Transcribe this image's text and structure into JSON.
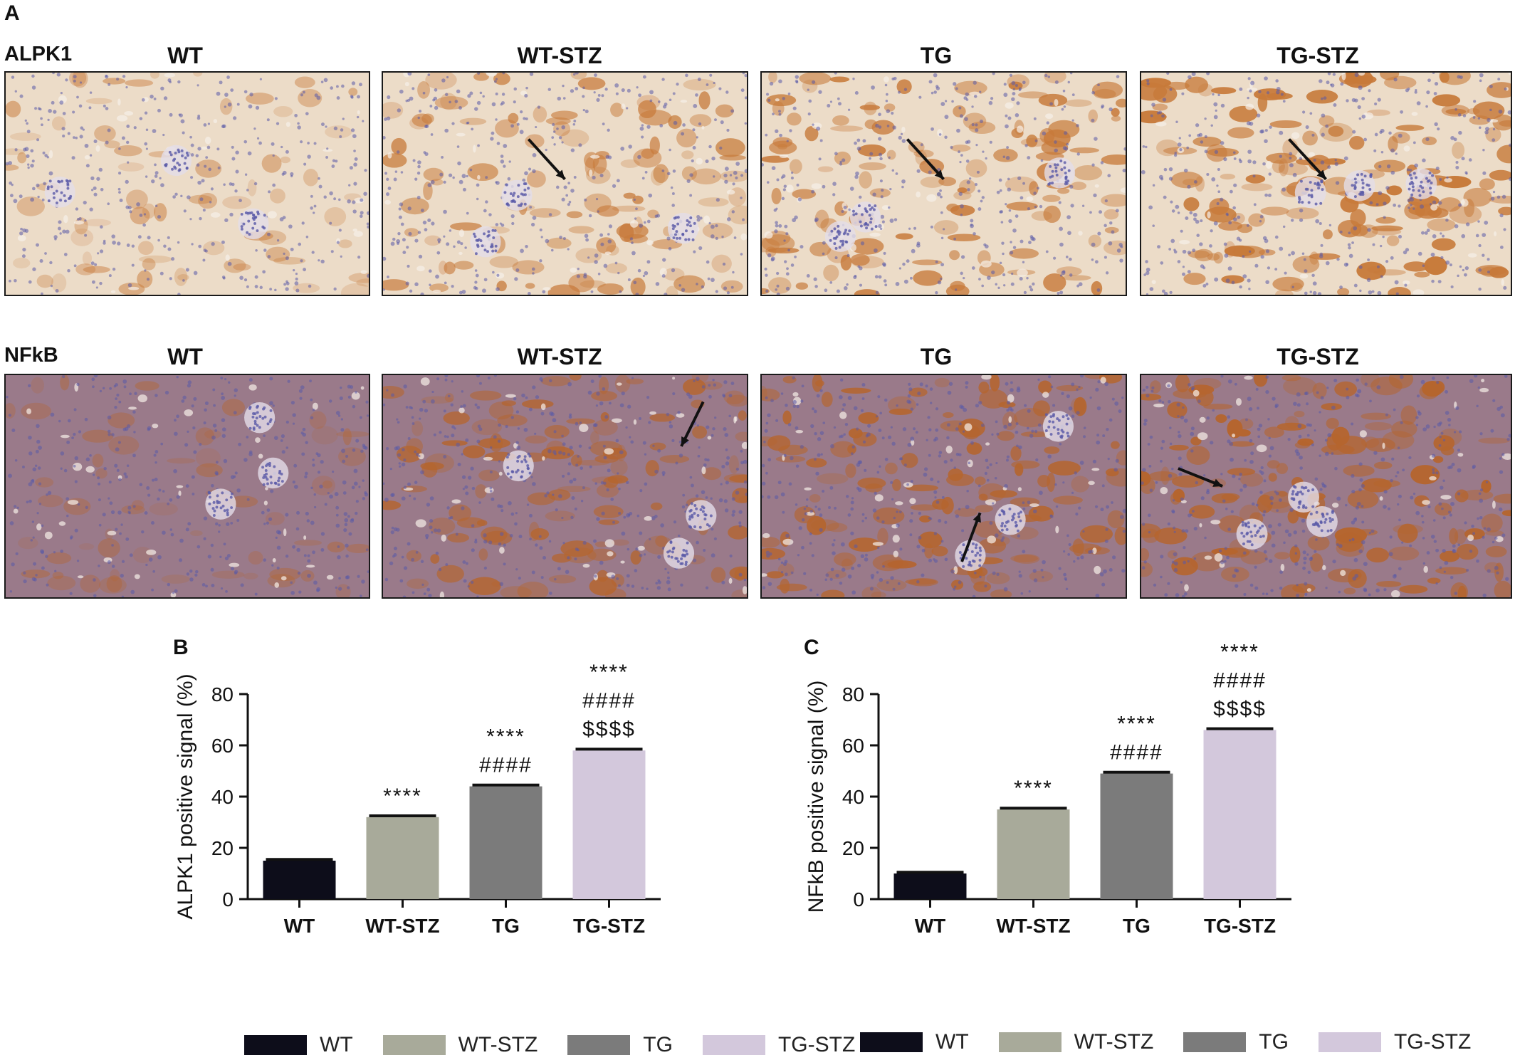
{
  "figure": {
    "panel_a": "A",
    "panel_b": "B",
    "panel_c": "C",
    "rows": [
      {
        "label": "ALPK1",
        "groups": [
          "WT",
          "WT-STZ",
          "TG",
          "TG-STZ"
        ]
      },
      {
        "label": "NFkB",
        "groups": [
          "WT",
          "WT-STZ",
          "TG",
          "TG-STZ"
        ]
      }
    ]
  },
  "colors": {
    "WT": "#0d0d1a",
    "WT-STZ": "#a8aa9a",
    "TG": "#7b7b7b",
    "TG-STZ": "#d3c8dc",
    "alpk1_bg": "#ecdcc8",
    "alpk1_stain": "#c77a3a",
    "nfkb_bg": "#9a7a8a",
    "nfkb_stain": "#b5652e",
    "nuclei": "#5a5aa8"
  },
  "legend": {
    "items": [
      {
        "label": "WT",
        "color": "#0d0d1a"
      },
      {
        "label": "WT-STZ",
        "color": "#a8aa9a"
      },
      {
        "label": "TG",
        "color": "#7b7b7b"
      },
      {
        "label": "TG-STZ",
        "color": "#d3c8dc"
      }
    ]
  },
  "chart_data": [
    {
      "type": "bar",
      "categories": [
        "WT",
        "WT-STZ",
        "TG",
        "TG-STZ"
      ],
      "values": [
        15,
        32,
        44,
        58
      ],
      "errors": [
        0.5,
        0.5,
        0.5,
        0.5
      ],
      "annotations": [
        [],
        [
          "****"
        ],
        [
          "####",
          "****"
        ],
        [
          "$$$$",
          "####",
          "****"
        ]
      ],
      "colors": [
        "#0d0d1a",
        "#a8aa9a",
        "#7b7b7b",
        "#d3c8dc"
      ],
      "title": "",
      "xlabel": "",
      "ylabel": "ALPK1 positive signal (%)",
      "ylim": [
        0,
        80
      ],
      "yticks": [
        0,
        20,
        40,
        60,
        80
      ],
      "grid": false
    },
    {
      "type": "bar",
      "categories": [
        "WT",
        "WT-STZ",
        "TG",
        "TG-STZ"
      ],
      "values": [
        10,
        35,
        49,
        66
      ],
      "errors": [
        0.5,
        0.5,
        0.5,
        0.5
      ],
      "annotations": [
        [],
        [
          "****"
        ],
        [
          "####",
          "****"
        ],
        [
          "$$$$",
          "####",
          "****"
        ]
      ],
      "colors": [
        "#0d0d1a",
        "#a8aa9a",
        "#7b7b7b",
        "#d3c8dc"
      ],
      "title": "",
      "xlabel": "",
      "ylabel": "NFkB positive signal (%)",
      "ylim": [
        0,
        80
      ],
      "yticks": [
        0,
        20,
        40,
        60,
        80
      ],
      "grid": false
    }
  ]
}
